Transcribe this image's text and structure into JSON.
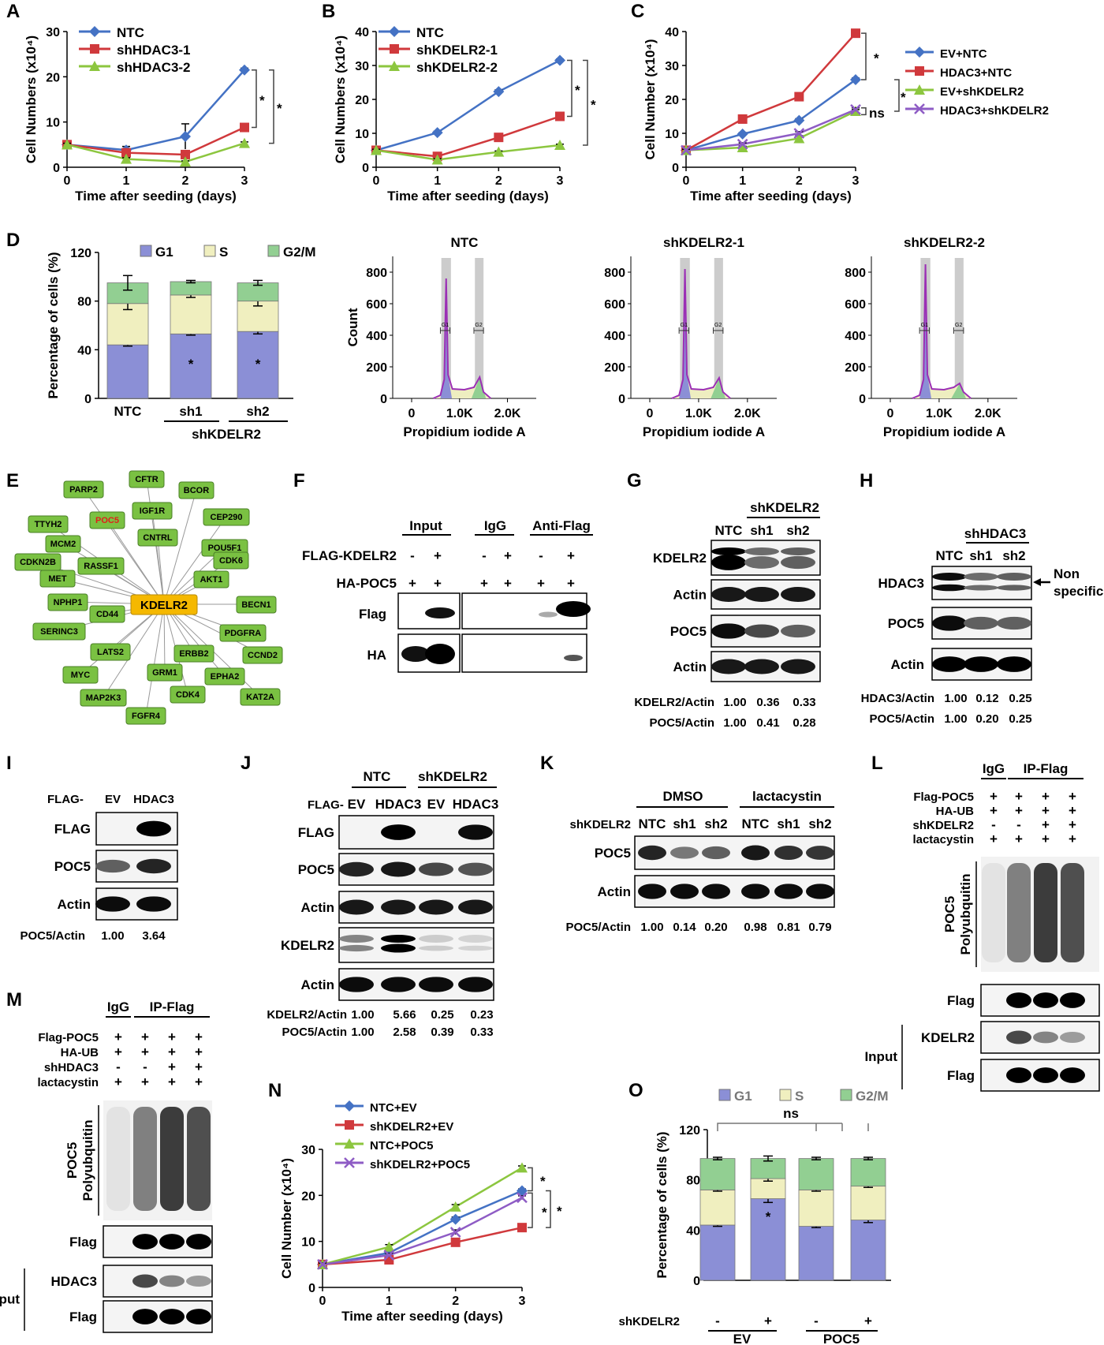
{
  "panels": {
    "A": {
      "letter": "A",
      "chart_data": {
        "type": "line",
        "x": [
          0,
          1,
          2,
          3
        ],
        "xlabel": "Time after seeding (days)",
        "ylabel": "Cell Numbers (x10⁴)",
        "ylim": [
          0,
          30
        ],
        "yticks": [
          0,
          10,
          20,
          30
        ],
        "series": [
          {
            "name": "NTC",
            "color": "#4472c4",
            "marker": "diamond",
            "values": [
              5,
              3.8,
              6.8,
              21.5
            ],
            "err": [
              0.3,
              0.8,
              2.8,
              0.4
            ]
          },
          {
            "name": "shHDAC3-1",
            "color": "#d0393c",
            "marker": "square",
            "values": [
              5,
              3.2,
              2.8,
              8.8
            ],
            "err": [
              0.3,
              0.5,
              0.6,
              0.4
            ]
          },
          {
            "name": "shHDAC3-2",
            "color": "#8cc63f",
            "marker": "triangle",
            "values": [
              5,
              1.8,
              1.2,
              5.3
            ],
            "err": [
              0.3,
              0.3,
              0.2,
              0.3
            ]
          }
        ],
        "annotations": [
          "*",
          "*"
        ]
      }
    },
    "B": {
      "letter": "B",
      "chart_data": {
        "type": "line",
        "x": [
          0,
          1,
          2,
          3
        ],
        "xlabel": "Time after seeding (days)",
        "ylabel": "Cell Numbers (x10⁴)",
        "ylim": [
          0,
          40
        ],
        "yticks": [
          0,
          10,
          20,
          30,
          40
        ],
        "series": [
          {
            "name": "NTC",
            "color": "#4472c4",
            "marker": "diamond",
            "values": [
              5,
              10.2,
              22.3,
              31.5
            ],
            "err": [
              0.3,
              0.4,
              0.5,
              0.4
            ]
          },
          {
            "name": "shKDELR2-1",
            "color": "#d0393c",
            "marker": "square",
            "values": [
              5,
              3.2,
              8.8,
              15
            ],
            "err": [
              0.3,
              0.4,
              0.4,
              0.4
            ]
          },
          {
            "name": "shKDELR2-2",
            "color": "#8cc63f",
            "marker": "triangle",
            "values": [
              5,
              2.2,
              4.5,
              6.5
            ],
            "err": [
              0.3,
              0.3,
              0.3,
              0.3
            ]
          }
        ],
        "annotations": [
          "*",
          "*"
        ]
      }
    },
    "C": {
      "letter": "C",
      "chart_data": {
        "type": "line",
        "x": [
          0,
          1,
          2,
          3
        ],
        "xlabel": "Time after seeding (days)",
        "ylabel": "Cell Number (x10⁴)",
        "ylim": [
          0,
          40
        ],
        "yticks": [
          0,
          10,
          20,
          30,
          40
        ],
        "series": [
          {
            "name": "EV+NTC",
            "color": "#4472c4",
            "marker": "diamond",
            "values": [
              5,
              9.8,
              13.8,
              25.8
            ],
            "err": [
              0.3,
              0.4,
              0.5,
              0.5
            ]
          },
          {
            "name": "HDAC3+NTC",
            "color": "#d0393c",
            "marker": "square",
            "values": [
              5,
              14.2,
              20.8,
              39.5
            ],
            "err": [
              0.3,
              0.4,
              0.5,
              0.5
            ]
          },
          {
            "name": "EV+shKDELR2",
            "color": "#8cc63f",
            "marker": "triangle",
            "values": [
              5,
              5.8,
              8.5,
              16.5
            ],
            "err": [
              0.3,
              0.4,
              0.8,
              0.5
            ]
          },
          {
            "name": "HDAC3+shKDELR2",
            "color": "#8e5cc5",
            "marker": "x",
            "values": [
              5,
              6.8,
              10,
              17
            ],
            "err": [
              0.3,
              0.4,
              0.5,
              0.5
            ]
          }
        ],
        "annotations": [
          "*",
          "*",
          "ns"
        ]
      }
    },
    "D": {
      "letter": "D",
      "chart_data": {
        "type": "bar",
        "stacked": true,
        "categories": [
          "NTC",
          "sh1",
          "sh2"
        ],
        "group_label": "shKDELR2",
        "ylabel": "Percentage of cells (%)",
        "ylim": [
          0,
          120
        ],
        "yticks": [
          0,
          40,
          80,
          120
        ],
        "series": [
          {
            "name": "G1",
            "color": "#8b8fd6",
            "values": [
              44,
              53,
              55
            ],
            "err": [
              1,
              1,
              2
            ]
          },
          {
            "name": "S",
            "color": "#f0efbf",
            "values": [
              34,
              32,
              25
            ],
            "err": [
              5,
              2,
              4
            ]
          },
          {
            "name": "G2/M",
            "color": "#92cf92",
            "values": [
              17,
              11,
              15
            ],
            "err": [
              6,
              1,
              2
            ]
          }
        ],
        "annotations": [
          "*",
          "*"
        ]
      },
      "histograms": [
        {
          "title": "NTC",
          "ylabel": "Count",
          "yticks": [
            "0",
            "200",
            "400",
            "600",
            "800"
          ],
          "xticks": [
            "0",
            "1.0K",
            "2.0K"
          ],
          "xlabel": "Propidium iodide A",
          "gates": [
            "G1",
            "G2"
          ],
          "peak": 760,
          "g2": 135
        },
        {
          "title": "shKDELR2-1",
          "ylabel": "",
          "yticks": [
            "0",
            "200",
            "400",
            "600",
            "800"
          ],
          "xticks": [
            "0",
            "1.0K",
            "2.0K"
          ],
          "xlabel": "Propidium iodide A",
          "gates": [
            "G1",
            "G2"
          ],
          "peak": 820,
          "g2": 130
        },
        {
          "title": "shKDELR2-2",
          "ylabel": "",
          "yticks": [
            "0",
            "200",
            "400",
            "600",
            "800"
          ],
          "xticks": [
            "0",
            "1.0K",
            "2.0K"
          ],
          "xlabel": "Propidium iodide A",
          "gates": [
            "G1",
            "G2"
          ],
          "peak": 850,
          "g2": 95
        }
      ]
    },
    "E": {
      "letter": "E",
      "hub": "KDELR2",
      "nodes": [
        "PARP2",
        "CFTR",
        "BCOR",
        "TTYH2",
        "POC5",
        "IGF1R",
        "CEP290",
        "MCM2",
        "CNTRL",
        "POU5F1",
        "CDKN2B",
        "RASSF1",
        "CDK6",
        "MET",
        "AKT1",
        "NPHP1",
        "BECN1",
        "CD44",
        "SERINC3",
        "PDGFRA",
        "LATS2",
        "ERBB2",
        "CCND2",
        "MYC",
        "GRM1",
        "EPHA2",
        "CDK4",
        "KAT2A",
        "MAP2K3",
        "FGFR4"
      ],
      "highlight": "POC5"
    },
    "F": {
      "letter": "F",
      "groups": [
        "Input",
        "IgG",
        "Anti-Flag"
      ],
      "rows": [
        {
          "label": "FLAG-KDELR2",
          "values": [
            "-",
            "+",
            "-",
            "+",
            "-",
            "+"
          ]
        },
        {
          "label": "HA-POC5",
          "values": [
            "+",
            "+",
            "+",
            "+",
            "+",
            "+"
          ]
        }
      ],
      "blots": [
        "Flag",
        "HA"
      ]
    },
    "G": {
      "letter": "G",
      "group": "shKDELR2",
      "lanes": [
        "NTC",
        "sh1",
        "sh2"
      ],
      "blots": [
        "KDELR2",
        "Actin",
        "POC5",
        "Actin"
      ],
      "quant": [
        {
          "label": "KDELR2/Actin",
          "values": [
            "1.00",
            "0.36",
            "0.33"
          ]
        },
        {
          "label": "POC5/Actin",
          "values": [
            "1.00",
            "0.41",
            "0.28"
          ]
        }
      ]
    },
    "H": {
      "letter": "H",
      "group": "shHDAC3",
      "lanes": [
        "NTC",
        "sh1",
        "sh2"
      ],
      "blots": [
        "HDAC3",
        "POC5",
        "Actin"
      ],
      "nonspecific": [
        "Non",
        "specific"
      ],
      "quant": [
        {
          "label": "HDAC3/Actin",
          "values": [
            "1.00",
            "0.12",
            "0.25"
          ]
        },
        {
          "label": "POC5/Actin",
          "values": [
            "1.00",
            "0.20",
            "0.25"
          ]
        }
      ]
    },
    "I": {
      "letter": "I",
      "prefix": "FLAG-",
      "lanes": [
        "EV",
        "HDAC3"
      ],
      "blots": [
        "FLAG",
        "POC5",
        "Actin"
      ],
      "quant": [
        {
          "label": "POC5/Actin",
          "values": [
            "1.00",
            "3.64"
          ]
        }
      ]
    },
    "J": {
      "letter": "J",
      "groups": [
        "NTC",
        "shKDELR2"
      ],
      "prefix": "FLAG-",
      "lanes": [
        "EV",
        "HDAC3",
        "EV",
        "HDAC3"
      ],
      "blots": [
        "FLAG",
        "POC5",
        "Actin",
        "KDELR2",
        "Actin"
      ],
      "quant": [
        {
          "label": "KDELR2/Actin",
          "values": [
            "1.00",
            "5.66",
            "0.25",
            "0.23"
          ]
        },
        {
          "label": "POC5/Actin",
          "values": [
            "1.00",
            "2.58",
            "0.39",
            "0.33"
          ]
        }
      ]
    },
    "K": {
      "letter": "K",
      "groups": [
        "DMSO",
        "lactacystin"
      ],
      "row_label": "shKDELR2",
      "lanes": [
        "NTC",
        "sh1",
        "sh2",
        "NTC",
        "sh1",
        "sh2"
      ],
      "blots": [
        "POC5",
        "Actin"
      ],
      "quant": [
        {
          "label": "POC5/Actin",
          "values": [
            "1.00",
            "0.14",
            "0.20",
            "0.98",
            "0.81",
            "0.79"
          ]
        }
      ]
    },
    "L": {
      "letter": "L",
      "groups": [
        "IgG",
        "IP-Flag"
      ],
      "rows": [
        {
          "label": "Flag-POC5",
          "values": [
            "+",
            "+",
            "+",
            "+"
          ]
        },
        {
          "label": "HA-UB",
          "values": [
            "+",
            "+",
            "+",
            "+"
          ]
        },
        {
          "label": "shKDELR2",
          "values": [
            "-",
            "-",
            "+",
            "+"
          ]
        },
        {
          "label": "lactacystin",
          "values": [
            "+",
            "+",
            "+",
            "+"
          ]
        }
      ],
      "smear_label": [
        "POC5",
        "Polyubquitin"
      ],
      "blots": [
        "Flag"
      ],
      "input_label": "Input",
      "input_blots": [
        "KDELR2",
        "Flag"
      ]
    },
    "M": {
      "letter": "M",
      "groups": [
        "IgG",
        "IP-Flag"
      ],
      "rows": [
        {
          "label": "Flag-POC5",
          "values": [
            "+",
            "+",
            "+",
            "+"
          ]
        },
        {
          "label": "HA-UB",
          "values": [
            "+",
            "+",
            "+",
            "+"
          ]
        },
        {
          "label": "shHDAC3",
          "values": [
            "-",
            "-",
            "+",
            "+"
          ]
        },
        {
          "label": "lactacystin",
          "values": [
            "+",
            "+",
            "+",
            "+"
          ]
        }
      ],
      "smear_label": [
        "POC5",
        "Polyubquitin"
      ],
      "blots": [
        "Flag"
      ],
      "input_label": "Input",
      "input_blots": [
        "HDAC3",
        "Flag"
      ]
    },
    "N": {
      "letter": "N",
      "chart_data": {
        "type": "line",
        "x": [
          0,
          1,
          2,
          3
        ],
        "xlabel": "Time after seeding (days)",
        "ylabel": "Cell Number (x10⁴)",
        "ylim": [
          0,
          30
        ],
        "yticks": [
          0,
          10,
          20,
          30
        ],
        "series": [
          {
            "name": "NTC+EV",
            "color": "#4472c4",
            "marker": "diamond",
            "values": [
              5,
              7.5,
              14.8,
              21
            ],
            "err": [
              0.3,
              0.4,
              0.5,
              0.4
            ]
          },
          {
            "name": "shKDELR2+EV",
            "color": "#d0393c",
            "marker": "square",
            "values": [
              5,
              6,
              9.8,
              13
            ],
            "err": [
              0.3,
              0.4,
              0.5,
              0.4
            ]
          },
          {
            "name": "NTC+POC5",
            "color": "#8cc63f",
            "marker": "triangle",
            "values": [
              5,
              8.8,
              17.5,
              26
            ],
            "err": [
              0.3,
              0.5,
              0.5,
              0.4
            ]
          },
          {
            "name": "shKDELR2+POC5",
            "color": "#8e5cc5",
            "marker": "x",
            "values": [
              5,
              7,
              12,
              19.5
            ],
            "err": [
              0.3,
              0.4,
              0.5,
              0.4
            ]
          }
        ],
        "annotations": [
          "*",
          "*",
          "*"
        ]
      }
    },
    "O": {
      "letter": "O",
      "chart_data": {
        "type": "bar",
        "stacked": true,
        "categories": [
          "-",
          "+",
          "-",
          "+"
        ],
        "row_label": "shKDELR2",
        "groups": [
          "EV",
          "POC5"
        ],
        "ylabel": "Percentage of cells (%)",
        "ylim": [
          0,
          120
        ],
        "yticks": [
          0,
          40,
          80,
          120
        ],
        "series": [
          {
            "name": "G1",
            "color": "#8b8fd6",
            "values": [
              44,
              65,
              43,
              48
            ],
            "err": [
              1,
              3,
              1,
              2
            ]
          },
          {
            "name": "S",
            "color": "#f0efbf",
            "values": [
              28,
              16,
              29,
              27
            ],
            "err": [
              1,
              2,
              1,
              1
            ]
          },
          {
            "name": "G2/M",
            "color": "#92cf92",
            "values": [
              25,
              16,
              25,
              22
            ],
            "err": [
              1,
              2,
              1,
              1
            ]
          }
        ],
        "annotations": [
          "ns",
          "*"
        ]
      }
    }
  }
}
